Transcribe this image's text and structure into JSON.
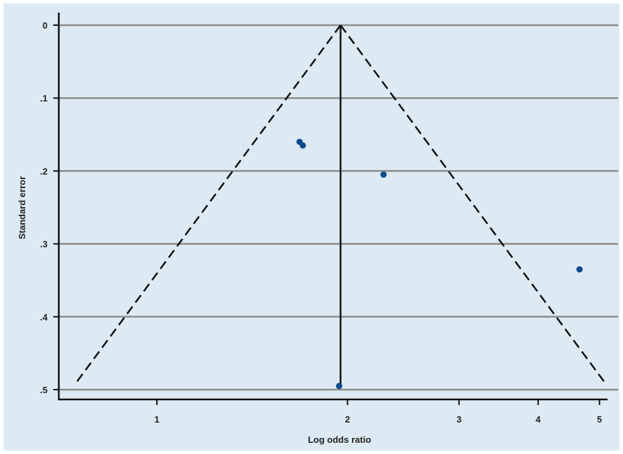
{
  "chart_data": {
    "type": "scatter",
    "title": "",
    "xlabel": "Log odds ratio",
    "ylabel": "Standard error",
    "x_scale": "log",
    "xlim": [
      0.7,
      5.35
    ],
    "ylim": [
      0,
      0.5
    ],
    "y_reversed": true,
    "x_ticks": [
      1,
      2,
      3,
      4,
      5
    ],
    "x_tick_labels": [
      "1",
      "2",
      "3",
      "4",
      "5"
    ],
    "y_ticks": [
      0,
      0.1,
      0.2,
      0.3,
      0.4,
      0.5
    ],
    "y_tick_labels": [
      "0",
      ".1",
      ".2",
      ".3",
      ".4",
      ".5"
    ],
    "grid": "horizontal",
    "pooled_estimate": 1.95,
    "points": [
      {
        "x": 1.68,
        "y": 0.16
      },
      {
        "x": 1.7,
        "y": 0.165
      },
      {
        "x": 2.28,
        "y": 0.205
      },
      {
        "x": 4.65,
        "y": 0.335
      },
      {
        "x": 1.94,
        "y": 0.495
      }
    ],
    "colors": {
      "background": "#ddeaf3",
      "point": "#0b4a8c",
      "grid": "#8c8c8c",
      "lines": "#111111"
    }
  }
}
